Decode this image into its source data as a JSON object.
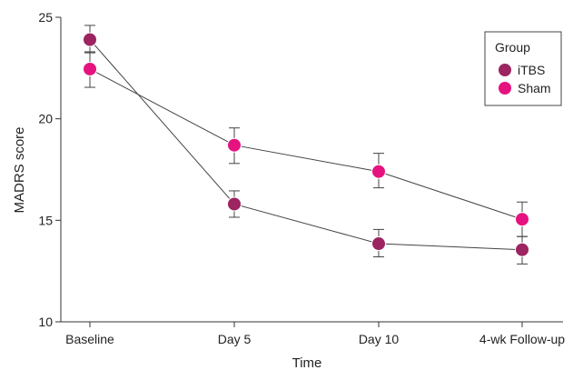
{
  "chart_data": {
    "type": "line",
    "xlabel": "Time",
    "ylabel": "MADRS score",
    "categories": [
      "Baseline",
      "Day 5",
      "Day 10",
      "4-wk Follow-up"
    ],
    "ylim": [
      10,
      25
    ],
    "yticks": [
      10,
      15,
      20,
      25
    ],
    "legend": {
      "title": "Group",
      "position": "top-right"
    },
    "series": [
      {
        "name": "iTBS",
        "color": "#9b2461",
        "values": [
          23.9,
          15.8,
          13.85,
          13.55
        ],
        "error_low": [
          23.25,
          15.15,
          13.2,
          12.85
        ],
        "error_high": [
          24.6,
          16.45,
          14.55,
          14.2
        ]
      },
      {
        "name": "Sham",
        "color": "#e5137f",
        "values": [
          22.45,
          18.7,
          17.4,
          15.05
        ],
        "error_low": [
          21.55,
          17.8,
          16.6,
          14.2
        ],
        "error_high": [
          23.3,
          19.55,
          18.3,
          15.9
        ]
      }
    ]
  }
}
